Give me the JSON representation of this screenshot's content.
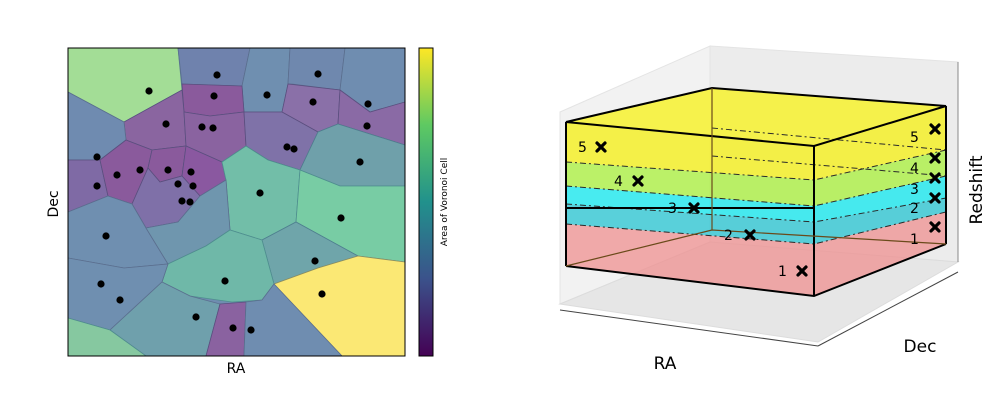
{
  "voronoi_panel": {
    "xlabel": "RA",
    "ylabel": "Dec",
    "colorbar_label": "Area of Voronoi Cell",
    "colormap": [
      "#440154",
      "#3b528b",
      "#21918c",
      "#5ec962",
      "#fde725"
    ],
    "cell_colors": {
      "small": "#8a5a9c",
      "mid_low": "#6f7faa",
      "mid": "#6fa0a8",
      "mid_high": "#78cca4",
      "large_green": "#a3dd96",
      "largest": "#fbe874"
    }
  },
  "layers_panel": {
    "xlabel": "RA",
    "ylabel": "Dec",
    "zlabel": "Redshift",
    "layer_colors": [
      "#f08a8a",
      "#26c4d2",
      "#a8f03a",
      "#f4f02a"
    ],
    "left_labels": [
      "1",
      "2",
      "3",
      "4",
      "5"
    ],
    "right_labels": [
      "1",
      "2",
      "3",
      "4",
      "5"
    ]
  }
}
